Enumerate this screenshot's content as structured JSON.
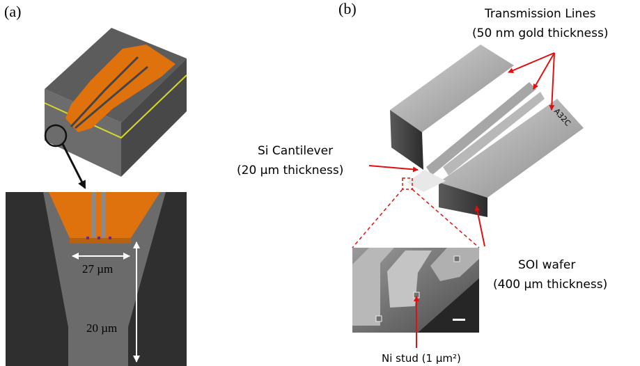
{
  "panel_a": {
    "label": "(a)",
    "width_dim": "27 µm",
    "height_dim": "20 µm"
  },
  "panel_b": {
    "label": "(b)",
    "wafer_marking": "A32C",
    "transmission_lines": {
      "line1": "Transmission Lines",
      "line2": "(50 nm gold thickness)"
    },
    "cantilever": {
      "line1": "Si Cantilever",
      "line2": "(20 µm thickness)"
    },
    "wafer": {
      "line1": "SOI wafer",
      "line2": "(400 µm thickness)"
    },
    "stud": "Ni stud (1 µm²)"
  },
  "colors": {
    "gold": "#e0720e",
    "dark_gray": "#3a3a3a",
    "mid_gray": "#6a6a6a",
    "arrow_red": "#e01010"
  }
}
